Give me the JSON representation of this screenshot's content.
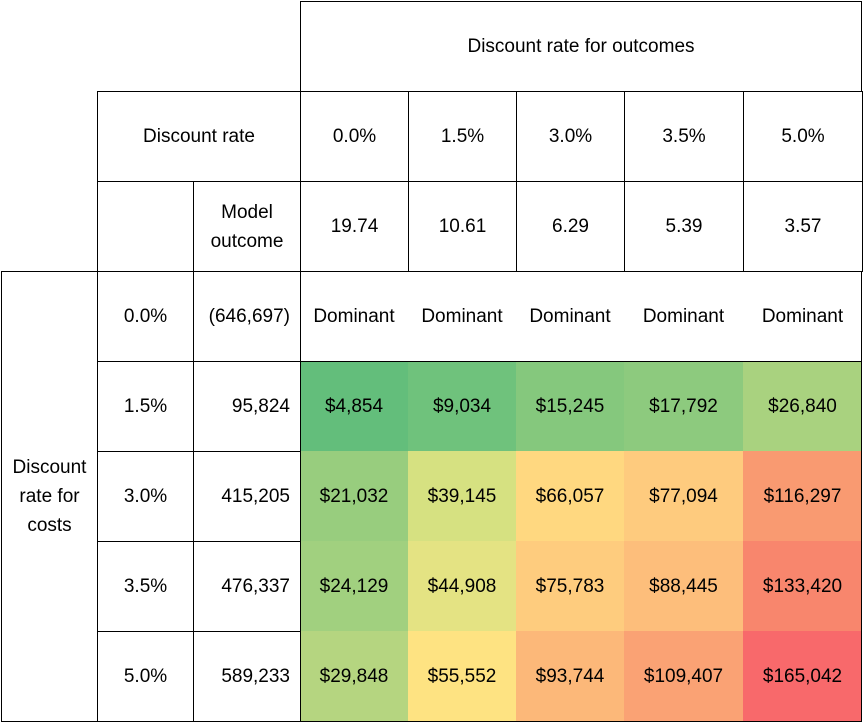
{
  "header": {
    "outcomes_title": "Discount rate for outcomes",
    "discount_rate_label": "Discount rate",
    "model_outcome_label": "Model\noutcome",
    "costs_label": "Discount\nrate for\ncosts"
  },
  "outcome_rates": [
    "0.0%",
    "1.5%",
    "3.0%",
    "3.5%",
    "5.0%"
  ],
  "model_outcomes": [
    "19.74",
    "10.61",
    "6.29",
    "5.39",
    "3.57"
  ],
  "rows": [
    {
      "rate": "0.0%",
      "cost": "(646,697)",
      "values": [
        "Dominant",
        "Dominant",
        "Dominant",
        "Dominant",
        "Dominant"
      ],
      "colors": [
        "#ffffff",
        "#ffffff",
        "#ffffff",
        "#ffffff",
        "#ffffff"
      ]
    },
    {
      "rate": "1.5%",
      "cost": "95,824",
      "values": [
        "$4,854",
        "$9,034",
        "$15,245",
        "$17,792",
        "$26,840"
      ],
      "colors": [
        "#63be7b",
        "#6fc27c",
        "#85c87d",
        "#8dca7e",
        "#a9d27f"
      ]
    },
    {
      "rate": "3.0%",
      "cost": "415,205",
      "values": [
        "$21,032",
        "$39,145",
        "$66,057",
        "$77,094",
        "$116,297"
      ],
      "colors": [
        "#98cd7e",
        "#d6e181",
        "#ffd880",
        "#fecb7e",
        "#f99a71"
      ]
    },
    {
      "rate": "3.5%",
      "cost": "476,337",
      "values": [
        "$24,129",
        "$44,908",
        "$75,783",
        "$88,445",
        "$133,420"
      ],
      "colors": [
        "#a1d07f",
        "#e4e383",
        "#fecc7e",
        "#fdbe7b",
        "#f8866d"
      ]
    },
    {
      "rate": "5.0%",
      "cost": "589,233",
      "values": [
        "$29,848",
        "$55,552",
        "$93,744",
        "$109,407",
        "$165,042"
      ],
      "colors": [
        "#b5d580",
        "#fee382",
        "#fcb879",
        "#faa274",
        "#f8696b"
      ]
    }
  ]
}
